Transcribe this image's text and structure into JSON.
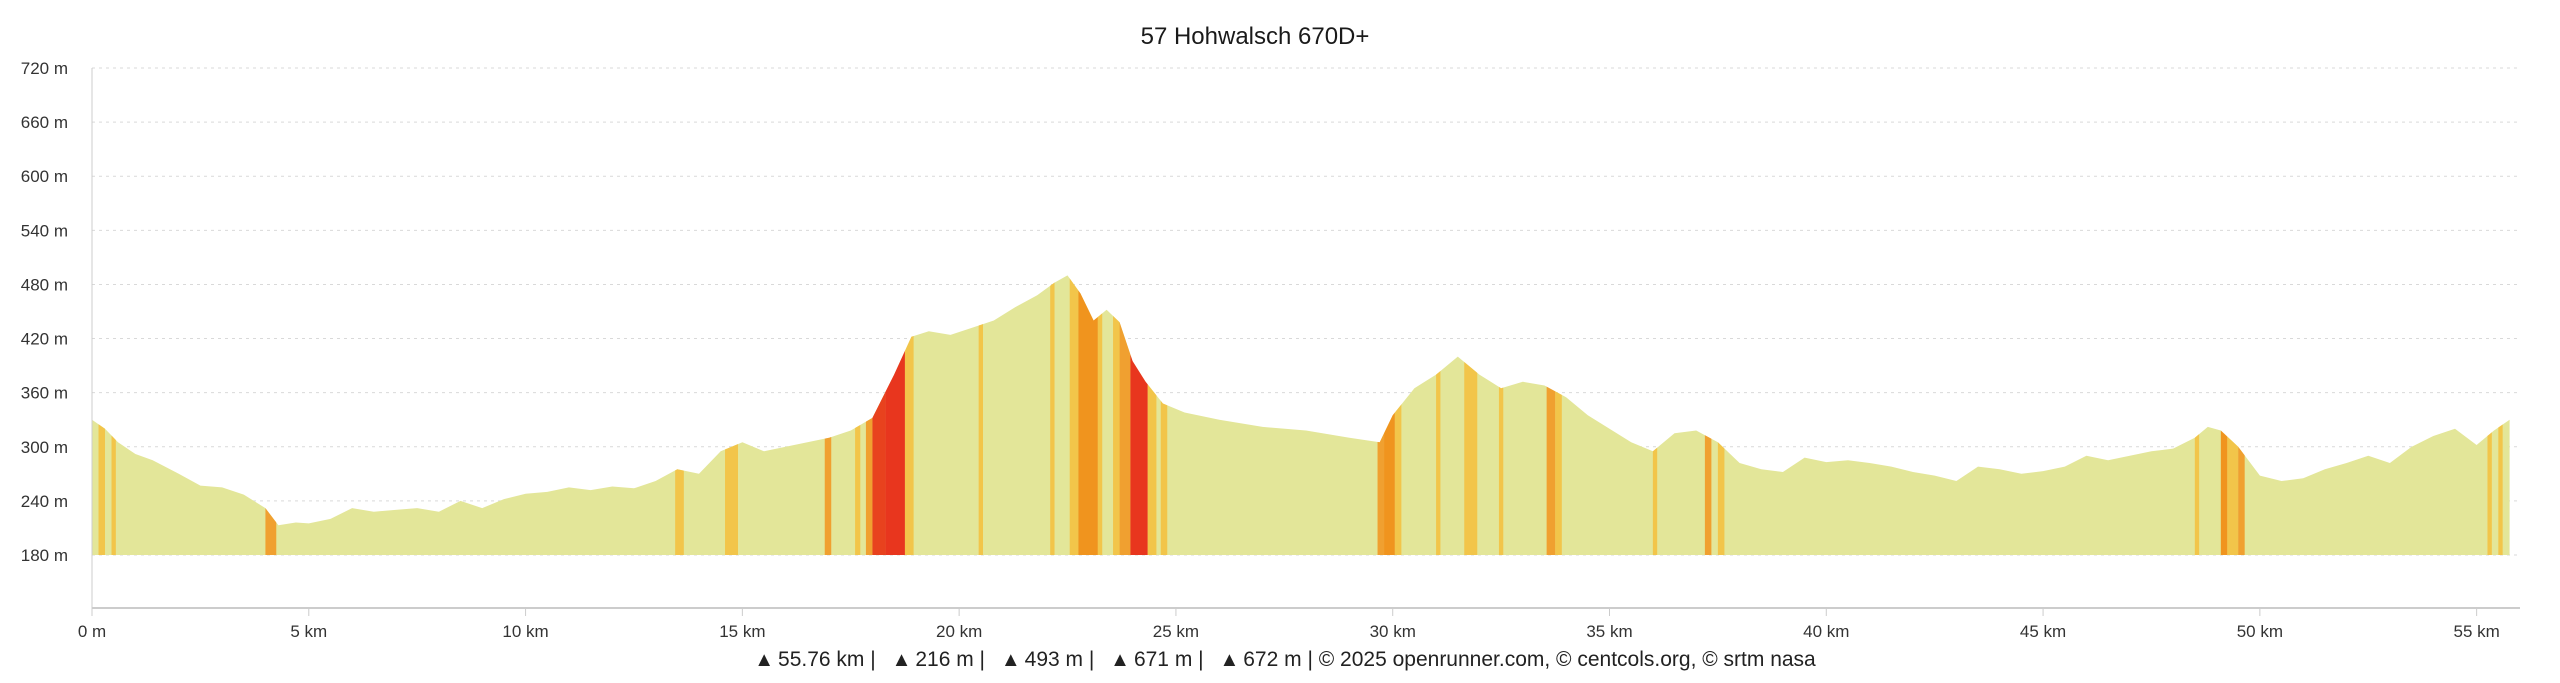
{
  "chart_data": {
    "type": "area",
    "title": "57 Hohwalsch 670D+",
    "xlabel": "",
    "ylabel": "",
    "xlim": [
      0,
      56
    ],
    "ylim": [
      180,
      720
    ],
    "x_ticks": [
      0,
      5,
      10,
      15,
      20,
      25,
      30,
      35,
      40,
      45,
      50,
      55
    ],
    "x_tick_labels": [
      "0 m",
      "5 km",
      "10 km",
      "15 km",
      "20 km",
      "25 km",
      "30 km",
      "35 km",
      "40 km",
      "45 km",
      "50 km",
      "55 km"
    ],
    "y_ticks": [
      180,
      240,
      300,
      360,
      420,
      480,
      540,
      600,
      660,
      720
    ],
    "y_tick_labels": [
      "180 m",
      "240 m",
      "300 m",
      "360 m",
      "420 m",
      "480 m",
      "540 m",
      "600 m",
      "660 m",
      "720 m"
    ],
    "grid": true,
    "fill_color": "#e3e699",
    "series": [
      {
        "x": [
          0,
          0.3,
          0.6,
          1.0,
          1.4,
          2.0,
          2.5,
          3.0,
          3.5,
          4.0,
          4.3,
          4.7,
          5.0,
          5.5,
          6.0,
          6.5,
          7.0,
          7.5,
          8.0,
          8.5,
          9.0,
          9.5,
          10.0,
          10.5,
          11.0,
          11.5,
          12.0,
          12.5,
          13.0,
          13.5,
          14.0,
          14.5,
          15.0,
          15.5,
          16.0,
          16.5,
          17.0,
          17.5,
          18.0,
          18.5,
          18.9,
          19.3,
          19.8,
          20.3,
          20.8,
          21.3,
          21.8,
          22.2,
          22.5,
          22.8,
          23.1,
          23.4,
          23.7,
          24.0,
          24.3,
          24.7,
          25.2,
          26.0,
          27.0,
          28.0,
          29.0,
          29.7,
          30.0,
          30.5,
          31.0,
          31.5,
          32.0,
          32.5,
          33.0,
          33.5,
          34.0,
          34.5,
          35.0,
          35.5,
          36.0,
          36.5,
          37.0,
          37.5,
          38.0,
          38.5,
          39.0,
          39.5,
          40.0,
          40.5,
          41.0,
          41.5,
          42.0,
          42.5,
          43.0,
          43.5,
          44.0,
          44.5,
          45.0,
          45.5,
          46.0,
          46.5,
          47.0,
          47.5,
          48.0,
          48.5,
          48.8,
          49.1,
          49.5,
          50.0,
          50.5,
          51.0,
          51.5,
          52.0,
          52.5,
          53.0,
          53.5,
          54.0,
          54.5,
          55.0,
          55.4,
          55.76
        ],
        "y": [
          330,
          320,
          305,
          292,
          285,
          270,
          257,
          255,
          247,
          232,
          213,
          216,
          215,
          220,
          232,
          228,
          230,
          232,
          228,
          240,
          232,
          242,
          248,
          250,
          255,
          252,
          256,
          254,
          262,
          275,
          270,
          295,
          305,
          295,
          300,
          305,
          310,
          318,
          332,
          380,
          422,
          428,
          424,
          432,
          440,
          455,
          468,
          482,
          490,
          470,
          440,
          452,
          438,
          395,
          372,
          348,
          338,
          330,
          322,
          318,
          310,
          305,
          335,
          365,
          380,
          400,
          380,
          365,
          372,
          368,
          355,
          335,
          320,
          305,
          295,
          315,
          318,
          305,
          282,
          275,
          272,
          288,
          283,
          285,
          282,
          278,
          272,
          268,
          262,
          278,
          275,
          270,
          273,
          278,
          290,
          285,
          290,
          295,
          298,
          310,
          322,
          318,
          300,
          268,
          262,
          265,
          275,
          282,
          290,
          282,
          300,
          312,
          320,
          302,
          318,
          330
        ]
      }
    ],
    "slope_bands": [
      {
        "from": 0.15,
        "to": 0.3,
        "color": "#f2c54a"
      },
      {
        "from": 0.45,
        "to": 0.55,
        "color": "#f2c54a"
      },
      {
        "from": 4.0,
        "to": 4.25,
        "color": "#f0a030"
      },
      {
        "from": 13.45,
        "to": 13.65,
        "color": "#f2c54a"
      },
      {
        "from": 14.6,
        "to": 14.9,
        "color": "#f2c54a"
      },
      {
        "from": 16.9,
        "to": 17.05,
        "color": "#f0a030"
      },
      {
        "from": 17.6,
        "to": 17.72,
        "color": "#f2c54a"
      },
      {
        "from": 17.85,
        "to": 18.0,
        "color": "#f0a030"
      },
      {
        "from": 18.0,
        "to": 18.3,
        "color": "#e8421e"
      },
      {
        "from": 18.3,
        "to": 18.75,
        "color": "#e8361e"
      },
      {
        "from": 18.75,
        "to": 18.95,
        "color": "#f2c54a"
      },
      {
        "from": 20.45,
        "to": 20.55,
        "color": "#f2c54a"
      },
      {
        "from": 22.1,
        "to": 22.2,
        "color": "#f2c54a"
      },
      {
        "from": 22.55,
        "to": 22.75,
        "color": "#f2c54a"
      },
      {
        "from": 22.75,
        "to": 23.2,
        "color": "#f0941e"
      },
      {
        "from": 23.2,
        "to": 23.3,
        "color": "#f2c54a"
      },
      {
        "from": 23.55,
        "to": 23.7,
        "color": "#f2c54a"
      },
      {
        "from": 23.7,
        "to": 23.95,
        "color": "#f0a030"
      },
      {
        "from": 23.95,
        "to": 24.35,
        "color": "#e8361e"
      },
      {
        "from": 24.35,
        "to": 24.55,
        "color": "#f2c54a"
      },
      {
        "from": 24.65,
        "to": 24.8,
        "color": "#f2c54a"
      },
      {
        "from": 29.65,
        "to": 29.8,
        "color": "#f0a030"
      },
      {
        "from": 29.8,
        "to": 30.05,
        "color": "#f0941e"
      },
      {
        "from": 30.05,
        "to": 30.2,
        "color": "#f2c54a"
      },
      {
        "from": 31.0,
        "to": 31.1,
        "color": "#f2c54a"
      },
      {
        "from": 31.65,
        "to": 31.95,
        "color": "#f2c54a"
      },
      {
        "from": 32.45,
        "to": 32.55,
        "color": "#f2c54a"
      },
      {
        "from": 33.55,
        "to": 33.75,
        "color": "#f0a030"
      },
      {
        "from": 33.75,
        "to": 33.9,
        "color": "#f2c54a"
      },
      {
        "from": 36.0,
        "to": 36.1,
        "color": "#f2c54a"
      },
      {
        "from": 37.2,
        "to": 37.35,
        "color": "#f0a030"
      },
      {
        "from": 37.5,
        "to": 37.65,
        "color": "#f2c54a"
      },
      {
        "from": 48.5,
        "to": 48.6,
        "color": "#f2c54a"
      },
      {
        "from": 49.1,
        "to": 49.25,
        "color": "#f0941e"
      },
      {
        "from": 49.25,
        "to": 49.5,
        "color": "#f2c54a"
      },
      {
        "from": 49.5,
        "to": 49.65,
        "color": "#f0a030"
      },
      {
        "from": 55.25,
        "to": 55.35,
        "color": "#f2c54a"
      },
      {
        "from": 55.5,
        "to": 55.6,
        "color": "#f2c54a"
      }
    ]
  },
  "footer": {
    "distance": "55.76 km |",
    "elev_gain": "216 m |",
    "max_alt": "493 m |",
    "ascent": "671 m |",
    "descent": "672 m | © 2025 openrunner.com, © centcols.org, © srtm nasa"
  },
  "icons": [
    "distance-icon",
    "elevation-gain-icon",
    "max-altitude-icon",
    "ascent-icon",
    "descent-icon"
  ]
}
